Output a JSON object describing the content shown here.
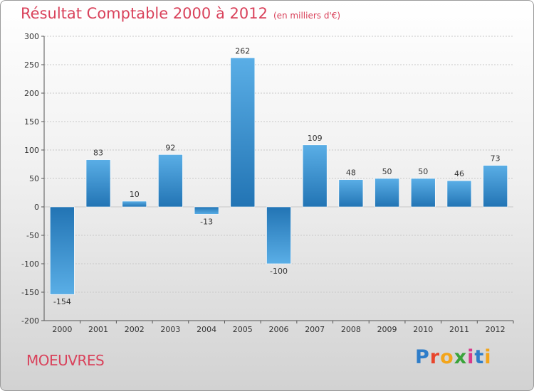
{
  "header": {
    "title": "Résultat Comptable 2000 à 2012",
    "subtitle": "(en milliers d'€)"
  },
  "footer": {
    "commune": "MOEUVRES",
    "logo": {
      "letters": [
        "P",
        "r",
        "o",
        "x",
        "i",
        "t",
        "i"
      ],
      "colors": [
        "#2e7dc9",
        "#e8452c",
        "#f3a51b",
        "#3aa33a",
        "#d93a8a",
        "#2e7dc9",
        "#f3a51b"
      ]
    }
  },
  "colors": {
    "bar_light": "#5aaee6",
    "bar_dark": "#2274b4",
    "grid": "#c8c8c8",
    "axis": "#555555"
  },
  "chart_data": {
    "type": "bar",
    "title": "Résultat Comptable 2000 à 2012",
    "categories": [
      "2000",
      "2001",
      "2002",
      "2003",
      "2004",
      "2005",
      "2006",
      "2007",
      "2008",
      "2009",
      "2010",
      "2011",
      "2012"
    ],
    "values": [
      -154,
      83,
      10,
      92,
      -13,
      262,
      -100,
      109,
      48,
      50,
      50,
      46,
      73
    ],
    "ylim": [
      -200,
      300
    ],
    "yticks": [
      300,
      250,
      200,
      150,
      100,
      50,
      0,
      -50,
      -100,
      -150,
      -200
    ],
    "grid": true,
    "legend": "none"
  }
}
